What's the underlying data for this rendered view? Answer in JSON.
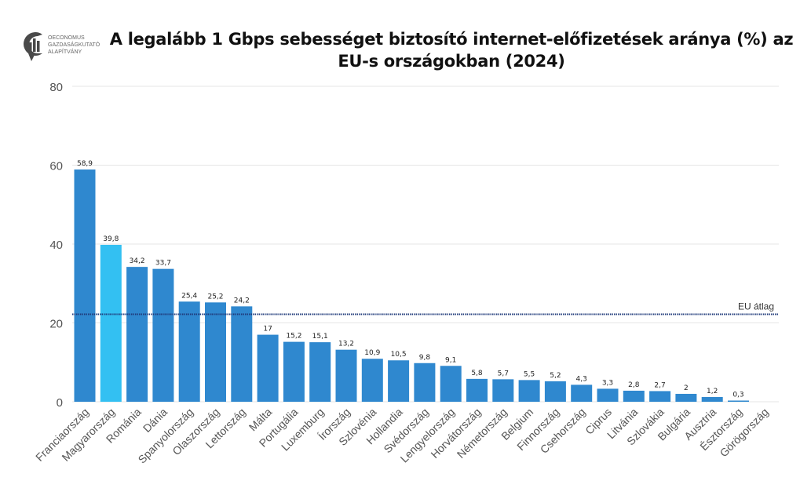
{
  "logo": {
    "lines": [
      "OECONOMUS",
      "GAZDASÁGKUTATÓ",
      "ALAPÍTVÁNY"
    ]
  },
  "chart_data": {
    "type": "bar",
    "title": "A legalább 1 Gbps sebességet biztosító internet-előfizetések aránya (%) az EU-s országokban (2024)",
    "xlabel": "",
    "ylabel": "",
    "ylim": [
      0,
      80
    ],
    "yticks": [
      0,
      20,
      40,
      60,
      80
    ],
    "grid": true,
    "categories": [
      "Franciaország",
      "Magyarország",
      "Románia",
      "Dánia",
      "Spanyolország",
      "Olaszország",
      "Lettország",
      "Málta",
      "Portugália",
      "Luxemburg",
      "Írország",
      "Szlovénia",
      "Hollandia",
      "Svédország",
      "Lengyelország",
      "Horvátország",
      "Németország",
      "Belgium",
      "Finnország",
      "Csehország",
      "Ciprus",
      "Litvánia",
      "Szlovákia",
      "Bulgária",
      "Ausztria",
      "Észtország",
      "Görögország"
    ],
    "values": [
      58.9,
      39.8,
      34.2,
      33.7,
      25.4,
      25.2,
      24.2,
      17,
      15.2,
      15.1,
      13.2,
      10.9,
      10.5,
      9.8,
      9.1,
      5.8,
      5.7,
      5.5,
      5.2,
      4.3,
      3.3,
      2.8,
      2.7,
      2,
      1.2,
      0.3,
      null
    ],
    "value_labels": [
      "58,9",
      "39,8",
      "34,2",
      "33,7",
      "25,4",
      "25,2",
      "24,2",
      "17",
      "15,2",
      "15,1",
      "13,2",
      "10,9",
      "10,5",
      "9,8",
      "9,1",
      "5,8",
      "5,7",
      "5,5",
      "5,2",
      "4,3",
      "3,3",
      "2,8",
      "2,7",
      "2",
      "1,2",
      "0,3",
      ""
    ],
    "highlight": "Magyarország",
    "reference_line": {
      "label": "EU átlag",
      "value": 22.2,
      "color": "#1f3a7a"
    },
    "colors": {
      "bar": "#2f88cf",
      "highlight": "#33c0f2",
      "grid": "#e6e6e6"
    }
  }
}
